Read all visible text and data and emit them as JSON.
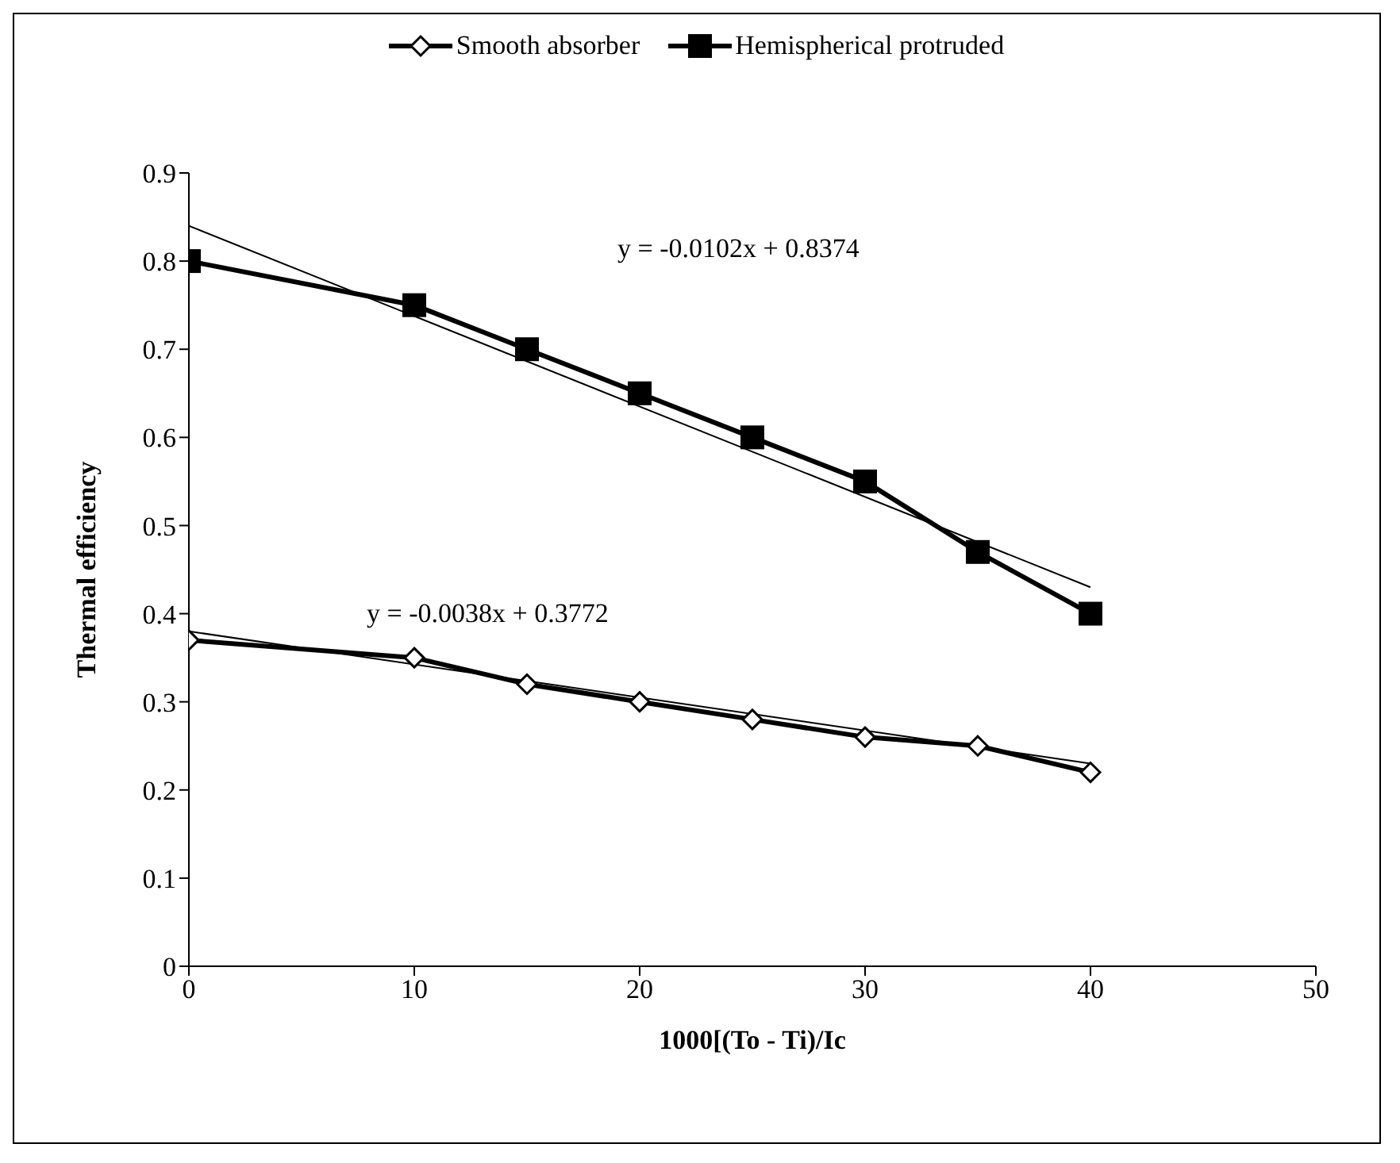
{
  "chart_data": {
    "type": "line",
    "xlabel": "1000[(To - Ti)/Ic",
    "ylabel": "Thermal efficiency",
    "xlim": [
      0,
      50
    ],
    "xticks": [
      0,
      10,
      20,
      30,
      40,
      50
    ],
    "ylim": [
      0,
      0.9
    ],
    "yticks": [
      0,
      0.1,
      0.2,
      0.3,
      0.4,
      0.5,
      0.6,
      0.7,
      0.8,
      0.9
    ],
    "grid": false,
    "legend": "top",
    "line_style": "solid",
    "series": [
      {
        "name": "Smooth absorber",
        "color": "#000000",
        "marker": "diamond",
        "x": [
          0,
          10,
          15,
          20,
          25,
          30,
          35,
          40
        ],
        "values": [
          0.37,
          0.35,
          0.32,
          0.3,
          0.28,
          0.26,
          0.25,
          0.22
        ]
      },
      {
        "name": "Hemispherical protruded",
        "color": "#000000",
        "marker": "square",
        "x": [
          0,
          10,
          15,
          20,
          25,
          30,
          35,
          40
        ],
        "values": [
          0.8,
          0.75,
          0.7,
          0.65,
          0.6,
          0.55,
          0.47,
          0.4
        ]
      },
      {
        "type": "line",
        "color": "#000000",
        "marker": "none",
        "x": [
          0,
          40
        ],
        "values": [
          0.84,
          0.43
        ]
      },
      {
        "type": "line",
        "color": "#000000",
        "marker": "none",
        "x": [
          0,
          40
        ],
        "values": [
          0.38,
          0.23
        ]
      }
    ],
    "annotations": [
      "y = -0.0102x + 0.8374",
      "y = -0.0038x + 0.3772"
    ]
  }
}
